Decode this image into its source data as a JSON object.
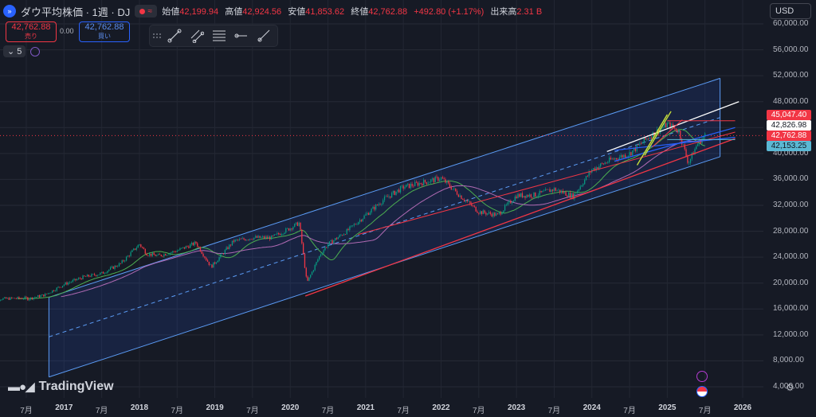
{
  "header": {
    "symbol_icon": "double-chevron-icon",
    "title": "ダウ平均株価 · 1週 · DJ",
    "o_label": "始値",
    "o_value": "42,199.94",
    "h_label": "高値",
    "h_value": "42,924.56",
    "l_label": "安値",
    "l_value": "41,853.62",
    "c_label": "終値",
    "c_value": "42,762.88",
    "change": "+492.80 (+1.17%)",
    "vol_label": "出来高",
    "vol_value": "2.31 B"
  },
  "trade": {
    "sell_price": "42,762.88",
    "sell_label": "売り",
    "spread": "0.00",
    "buy_price": "42,762.88",
    "buy_label": "買い"
  },
  "indicators": {
    "count": "5"
  },
  "currency": "USD",
  "y_axis": [
    "60,000.00",
    "56,000.00",
    "52,000.00",
    "48,000.00",
    "44,000.00",
    "40,000.00",
    "36,000.00",
    "32,000.00",
    "28,000.00",
    "24,000.00",
    "20,000.00",
    "16,000.00",
    "12,000.00",
    "8,000.00",
    "4,000.00"
  ],
  "price_labels": {
    "red1": "45,047.40",
    "white": "42,826.98",
    "red2": "42,762.88",
    "cyan": "42,153.25"
  },
  "x_axis": [
    {
      "t": "7月",
      "year": false
    },
    {
      "t": "2017",
      "year": true
    },
    {
      "t": "7月",
      "year": false
    },
    {
      "t": "2018",
      "year": true
    },
    {
      "t": "7月",
      "year": false
    },
    {
      "t": "2019",
      "year": true
    },
    {
      "t": "7月",
      "year": false
    },
    {
      "t": "2020",
      "year": true
    },
    {
      "t": "7月",
      "year": false
    },
    {
      "t": "2021",
      "year": true
    },
    {
      "t": "7月",
      "year": false
    },
    {
      "t": "2022",
      "year": true
    },
    {
      "t": "7月",
      "year": false
    },
    {
      "t": "2023",
      "year": true
    },
    {
      "t": "7月",
      "year": false
    },
    {
      "t": "2024",
      "year": true
    },
    {
      "t": "7月",
      "year": false
    },
    {
      "t": "2025",
      "year": true
    },
    {
      "t": "7月",
      "year": false
    },
    {
      "t": "2026",
      "year": true
    }
  ],
  "brand": "TradingView",
  "chart_data": {
    "type": "line",
    "x": [
      2016.5,
      2016.75,
      2017,
      2017.25,
      2017.5,
      2017.75,
      2018,
      2018.1,
      2018.25,
      2018.5,
      2018.75,
      2018.95,
      2019.25,
      2019.5,
      2019.75,
      2020,
      2020.12,
      2020.22,
      2020.4,
      2020.5,
      2020.75,
      2021,
      2021.25,
      2021.5,
      2021.75,
      2022,
      2022.25,
      2022.5,
      2022.75,
      2023,
      2023.25,
      2023.5,
      2023.75,
      2024,
      2024.25,
      2024.5,
      2024.75,
      2025,
      2025.15,
      2025.28,
      2025.4,
      2025.5
    ],
    "values": [
      17500,
      18200,
      19800,
      20900,
      21500,
      23000,
      26000,
      24500,
      24200,
      25000,
      26200,
      22500,
      26500,
      27000,
      27000,
      28500,
      29300,
      20000,
      24500,
      26000,
      28000,
      30500,
      33000,
      34800,
      35500,
      36200,
      33500,
      31000,
      30500,
      33500,
      33600,
      34500,
      33400,
      37500,
      39000,
      40000,
      42500,
      44500,
      43500,
      38500,
      41500,
      42762.88
    ],
    "ylim": [
      4000,
      60000
    ],
    "xlim": [
      2016.33,
      2026.25
    ],
    "grid": true
  },
  "colors": {
    "up": "#089981",
    "down": "#f23645",
    "channel": "#5b9cf6",
    "support": "#f23645"
  }
}
